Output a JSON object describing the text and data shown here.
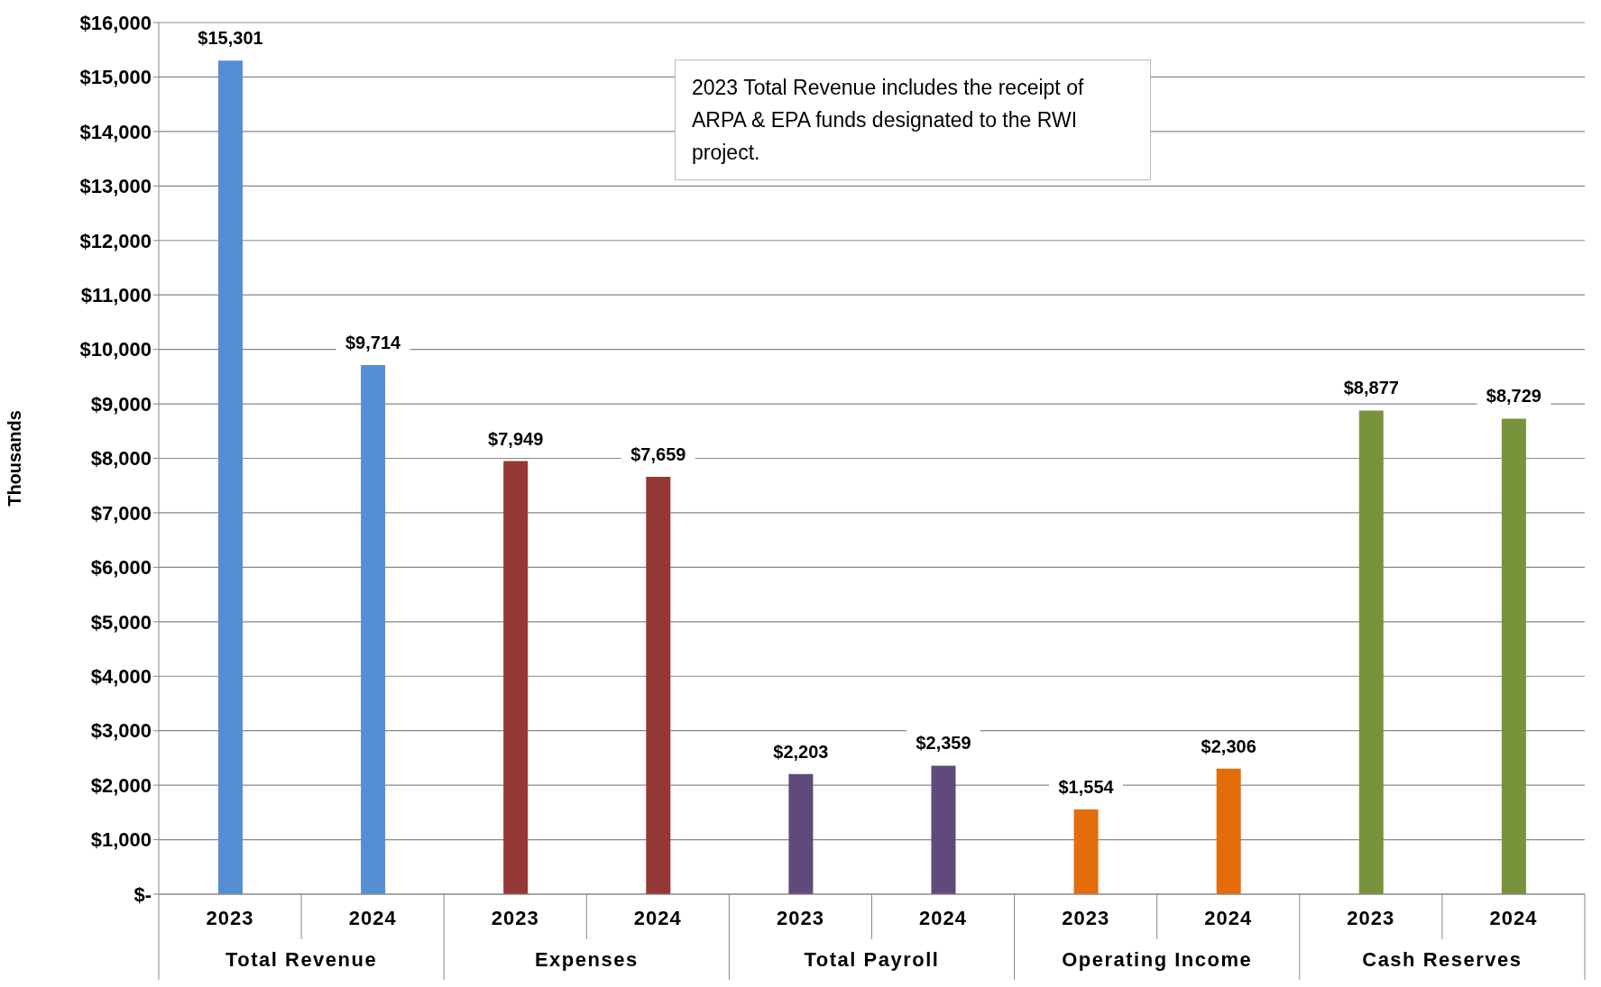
{
  "chart_data": {
    "type": "bar",
    "ylabel": "Thousands",
    "categories": [
      "2023",
      "2024",
      "2023",
      "2024",
      "2023",
      "2024",
      "2023",
      "2024",
      "2023",
      "2024"
    ],
    "values": [
      15301,
      9714,
      7949,
      7659,
      2203,
      2359,
      1554,
      2306,
      8877,
      8729
    ],
    "colors": [
      "#558ed5",
      "#558ed5",
      "#953735",
      "#953735",
      "#604a7b",
      "#604a7b",
      "#e46c0a",
      "#e46c0a",
      "#77933c",
      "#77933c"
    ],
    "value_labels": [
      "$15,301",
      "$9,714",
      "$7,949",
      "$7,659",
      "$2,203",
      "$2,359",
      "$1,554",
      "$2,306",
      "$8,877",
      "$8,729"
    ],
    "ylim": [
      0,
      16000
    ],
    "yticks": [
      {
        "value": 0,
        "label": "$-"
      },
      {
        "value": 1000,
        "label": "$1,000"
      },
      {
        "value": 2000,
        "label": "$2,000"
      },
      {
        "value": 3000,
        "label": "$3,000"
      },
      {
        "value": 4000,
        "label": "$4,000"
      },
      {
        "value": 5000,
        "label": "$5,000"
      },
      {
        "value": 6000,
        "label": "$6,000"
      },
      {
        "value": 7000,
        "label": "$7,000"
      },
      {
        "value": 8000,
        "label": "$8,000"
      },
      {
        "value": 9000,
        "label": "$9,000"
      },
      {
        "value": 10000,
        "label": "$10,000"
      },
      {
        "value": 11000,
        "label": "$11,000"
      },
      {
        "value": 12000,
        "label": "$12,000"
      },
      {
        "value": 13000,
        "label": "$13,000"
      },
      {
        "value": 14000,
        "label": "$14,000"
      },
      {
        "value": 15000,
        "label": "$15,000"
      },
      {
        "value": 16000,
        "label": "$16,000"
      }
    ],
    "grid": "y",
    "annotations": [
      "2023 Total Revenue includes the receipt of ARPA & EPA funds designated to the RWI project.",
      "Total Revenue",
      "Expenses",
      "Total Payroll",
      "Operating Income",
      "Cash Reserves"
    ]
  }
}
